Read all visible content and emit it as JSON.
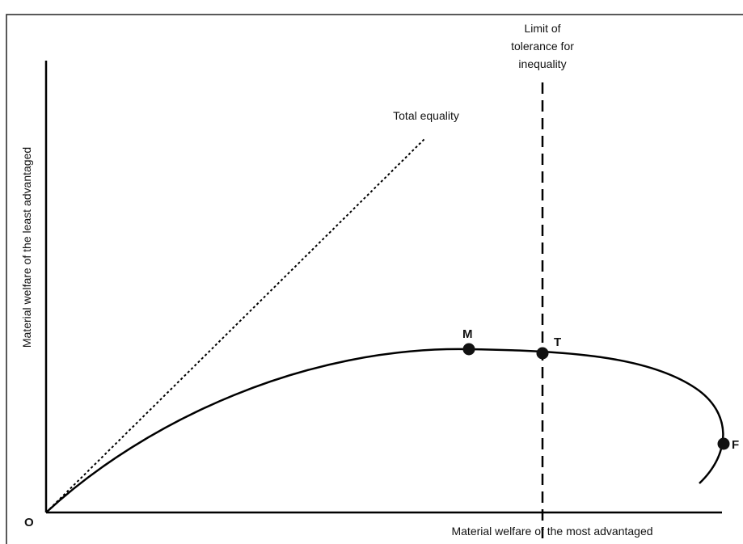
{
  "diagram": {
    "limit_label": [
      "Limit of",
      "tolerance for",
      "inequality"
    ],
    "equality_label": "Total equality",
    "points": [
      {
        "label": "M"
      },
      {
        "label": "T"
      },
      {
        "label": "F"
      }
    ],
    "origin_label": "O",
    "x_axis_label": "Material welfare of the most advantaged",
    "y_axis_label": "Material welfare of the least advantaged"
  }
}
